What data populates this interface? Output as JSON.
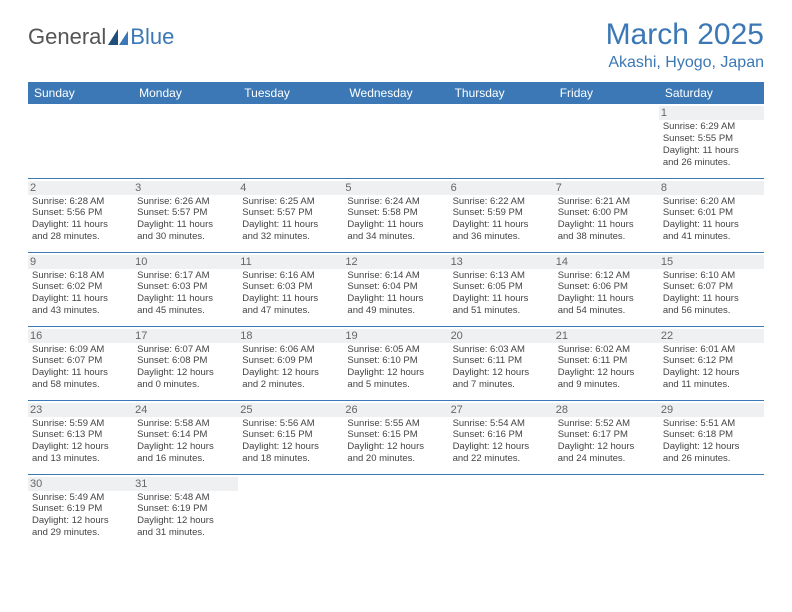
{
  "logo": {
    "part1": "General",
    "part2": "Blue"
  },
  "title": "March 2025",
  "location": "Akashi, Hyogo, Japan",
  "colors": {
    "brand": "#3b78b5",
    "header_bg": "#3b78b5",
    "header_text": "#ffffff",
    "daynum_bg": "#eef0f1",
    "border": "#3b78b5"
  },
  "weekdays": [
    "Sunday",
    "Monday",
    "Tuesday",
    "Wednesday",
    "Thursday",
    "Friday",
    "Saturday"
  ],
  "weeks": [
    [
      null,
      null,
      null,
      null,
      null,
      null,
      {
        "n": "1",
        "sr": "Sunrise: 6:29 AM",
        "ss": "Sunset: 5:55 PM",
        "d1": "Daylight: 11 hours",
        "d2": "and 26 minutes."
      }
    ],
    [
      {
        "n": "2",
        "sr": "Sunrise: 6:28 AM",
        "ss": "Sunset: 5:56 PM",
        "d1": "Daylight: 11 hours",
        "d2": "and 28 minutes."
      },
      {
        "n": "3",
        "sr": "Sunrise: 6:26 AM",
        "ss": "Sunset: 5:57 PM",
        "d1": "Daylight: 11 hours",
        "d2": "and 30 minutes."
      },
      {
        "n": "4",
        "sr": "Sunrise: 6:25 AM",
        "ss": "Sunset: 5:57 PM",
        "d1": "Daylight: 11 hours",
        "d2": "and 32 minutes."
      },
      {
        "n": "5",
        "sr": "Sunrise: 6:24 AM",
        "ss": "Sunset: 5:58 PM",
        "d1": "Daylight: 11 hours",
        "d2": "and 34 minutes."
      },
      {
        "n": "6",
        "sr": "Sunrise: 6:22 AM",
        "ss": "Sunset: 5:59 PM",
        "d1": "Daylight: 11 hours",
        "d2": "and 36 minutes."
      },
      {
        "n": "7",
        "sr": "Sunrise: 6:21 AM",
        "ss": "Sunset: 6:00 PM",
        "d1": "Daylight: 11 hours",
        "d2": "and 38 minutes."
      },
      {
        "n": "8",
        "sr": "Sunrise: 6:20 AM",
        "ss": "Sunset: 6:01 PM",
        "d1": "Daylight: 11 hours",
        "d2": "and 41 minutes."
      }
    ],
    [
      {
        "n": "9",
        "sr": "Sunrise: 6:18 AM",
        "ss": "Sunset: 6:02 PM",
        "d1": "Daylight: 11 hours",
        "d2": "and 43 minutes."
      },
      {
        "n": "10",
        "sr": "Sunrise: 6:17 AM",
        "ss": "Sunset: 6:03 PM",
        "d1": "Daylight: 11 hours",
        "d2": "and 45 minutes."
      },
      {
        "n": "11",
        "sr": "Sunrise: 6:16 AM",
        "ss": "Sunset: 6:03 PM",
        "d1": "Daylight: 11 hours",
        "d2": "and 47 minutes."
      },
      {
        "n": "12",
        "sr": "Sunrise: 6:14 AM",
        "ss": "Sunset: 6:04 PM",
        "d1": "Daylight: 11 hours",
        "d2": "and 49 minutes."
      },
      {
        "n": "13",
        "sr": "Sunrise: 6:13 AM",
        "ss": "Sunset: 6:05 PM",
        "d1": "Daylight: 11 hours",
        "d2": "and 51 minutes."
      },
      {
        "n": "14",
        "sr": "Sunrise: 6:12 AM",
        "ss": "Sunset: 6:06 PM",
        "d1": "Daylight: 11 hours",
        "d2": "and 54 minutes."
      },
      {
        "n": "15",
        "sr": "Sunrise: 6:10 AM",
        "ss": "Sunset: 6:07 PM",
        "d1": "Daylight: 11 hours",
        "d2": "and 56 minutes."
      }
    ],
    [
      {
        "n": "16",
        "sr": "Sunrise: 6:09 AM",
        "ss": "Sunset: 6:07 PM",
        "d1": "Daylight: 11 hours",
        "d2": "and 58 minutes."
      },
      {
        "n": "17",
        "sr": "Sunrise: 6:07 AM",
        "ss": "Sunset: 6:08 PM",
        "d1": "Daylight: 12 hours",
        "d2": "and 0 minutes."
      },
      {
        "n": "18",
        "sr": "Sunrise: 6:06 AM",
        "ss": "Sunset: 6:09 PM",
        "d1": "Daylight: 12 hours",
        "d2": "and 2 minutes."
      },
      {
        "n": "19",
        "sr": "Sunrise: 6:05 AM",
        "ss": "Sunset: 6:10 PM",
        "d1": "Daylight: 12 hours",
        "d2": "and 5 minutes."
      },
      {
        "n": "20",
        "sr": "Sunrise: 6:03 AM",
        "ss": "Sunset: 6:11 PM",
        "d1": "Daylight: 12 hours",
        "d2": "and 7 minutes."
      },
      {
        "n": "21",
        "sr": "Sunrise: 6:02 AM",
        "ss": "Sunset: 6:11 PM",
        "d1": "Daylight: 12 hours",
        "d2": "and 9 minutes."
      },
      {
        "n": "22",
        "sr": "Sunrise: 6:01 AM",
        "ss": "Sunset: 6:12 PM",
        "d1": "Daylight: 12 hours",
        "d2": "and 11 minutes."
      }
    ],
    [
      {
        "n": "23",
        "sr": "Sunrise: 5:59 AM",
        "ss": "Sunset: 6:13 PM",
        "d1": "Daylight: 12 hours",
        "d2": "and 13 minutes."
      },
      {
        "n": "24",
        "sr": "Sunrise: 5:58 AM",
        "ss": "Sunset: 6:14 PM",
        "d1": "Daylight: 12 hours",
        "d2": "and 16 minutes."
      },
      {
        "n": "25",
        "sr": "Sunrise: 5:56 AM",
        "ss": "Sunset: 6:15 PM",
        "d1": "Daylight: 12 hours",
        "d2": "and 18 minutes."
      },
      {
        "n": "26",
        "sr": "Sunrise: 5:55 AM",
        "ss": "Sunset: 6:15 PM",
        "d1": "Daylight: 12 hours",
        "d2": "and 20 minutes."
      },
      {
        "n": "27",
        "sr": "Sunrise: 5:54 AM",
        "ss": "Sunset: 6:16 PM",
        "d1": "Daylight: 12 hours",
        "d2": "and 22 minutes."
      },
      {
        "n": "28",
        "sr": "Sunrise: 5:52 AM",
        "ss": "Sunset: 6:17 PM",
        "d1": "Daylight: 12 hours",
        "d2": "and 24 minutes."
      },
      {
        "n": "29",
        "sr": "Sunrise: 5:51 AM",
        "ss": "Sunset: 6:18 PM",
        "d1": "Daylight: 12 hours",
        "d2": "and 26 minutes."
      }
    ],
    [
      {
        "n": "30",
        "sr": "Sunrise: 5:49 AM",
        "ss": "Sunset: 6:19 PM",
        "d1": "Daylight: 12 hours",
        "d2": "and 29 minutes."
      },
      {
        "n": "31",
        "sr": "Sunrise: 5:48 AM",
        "ss": "Sunset: 6:19 PM",
        "d1": "Daylight: 12 hours",
        "d2": "and 31 minutes."
      },
      null,
      null,
      null,
      null,
      null
    ]
  ]
}
